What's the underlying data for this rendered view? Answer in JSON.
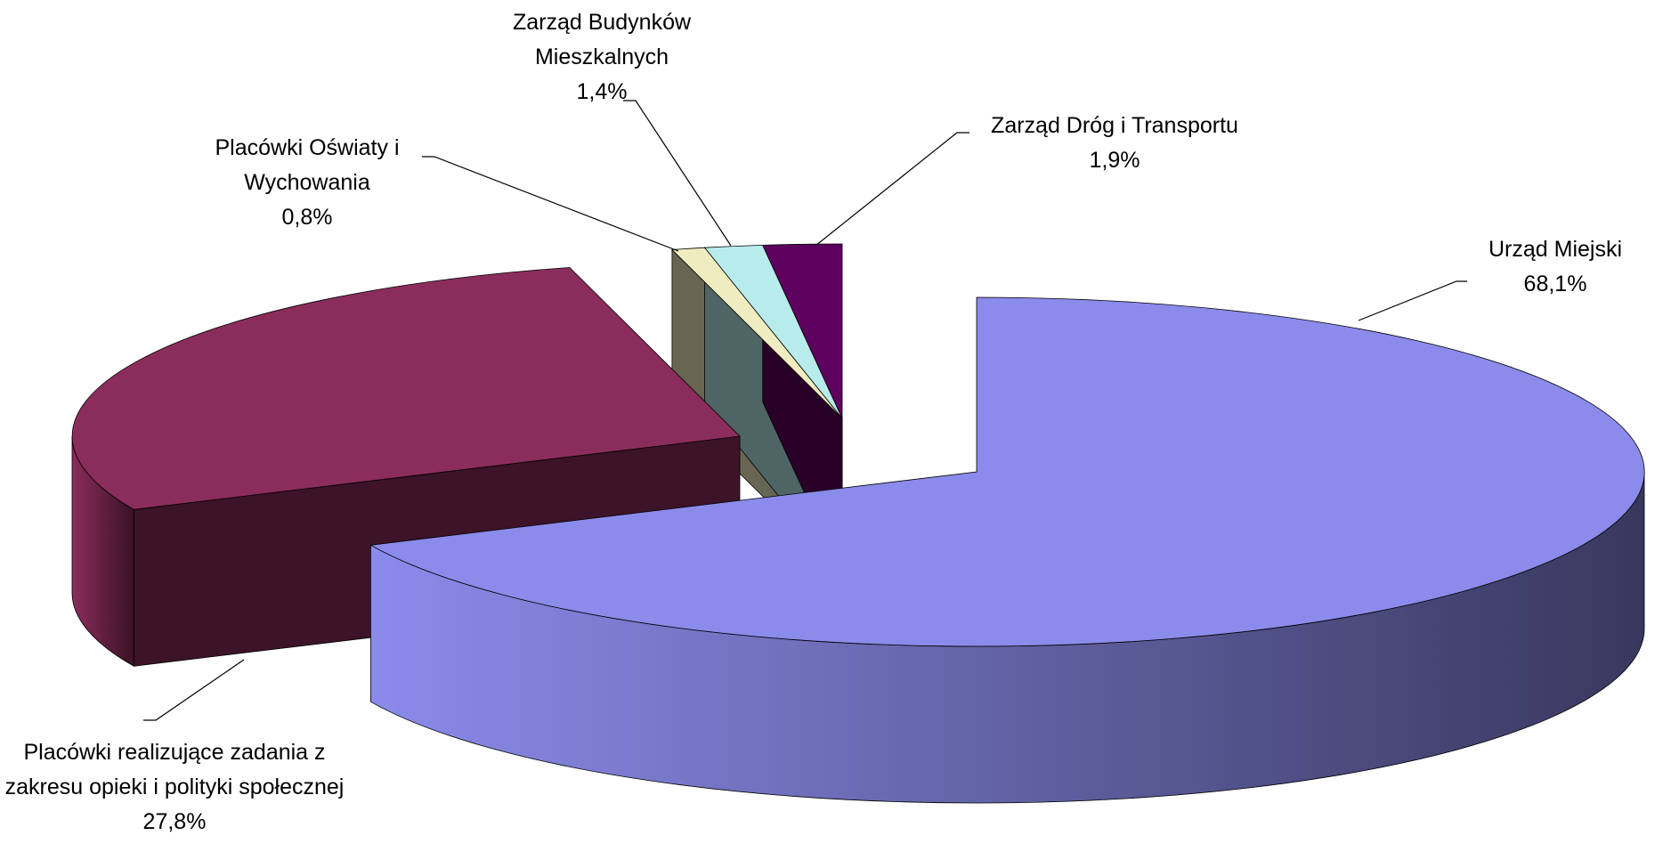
{
  "chart_data": {
    "type": "pie",
    "categories": [
      "Urząd Miejski",
      "Placówki realizujące zadania z zakresu opieki i polityki społecznej",
      "Placówki Oświaty i Wychowania",
      "Zarząd Budynków Mieszkalnych",
      "Zarząd Dróg i Transportu"
    ],
    "values": [
      68.1,
      27.8,
      0.8,
      1.4,
      1.9
    ],
    "value_labels": [
      "68,1%",
      "27,8%",
      "0,8%",
      "1,4%",
      "1,9%"
    ],
    "colors": [
      "#8b8beb",
      "#8b2d5c",
      "#efedc0",
      "#b8ecec",
      "#5e005e"
    ]
  }
}
